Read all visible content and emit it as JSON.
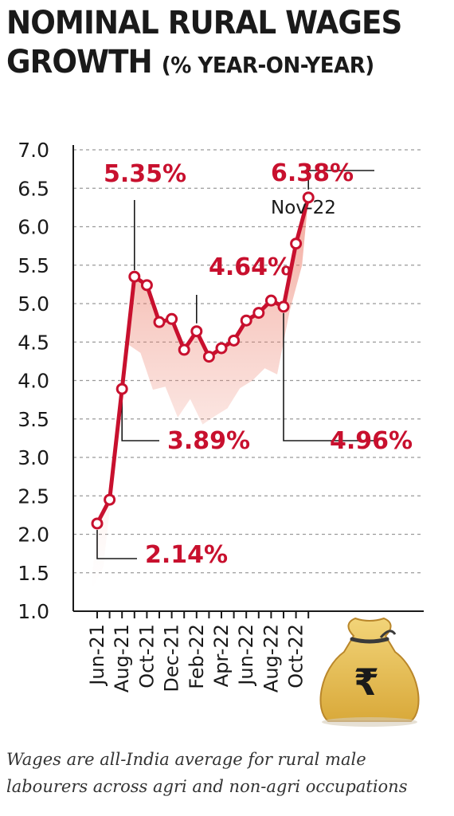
{
  "title": {
    "line1": "NOMINAL  RURAL WAGES",
    "line2": "GROWTH",
    "subtitle": "(% YEAR-ON-YEAR)"
  },
  "chart_data": {
    "type": "line",
    "x": [
      "Jun-21",
      "Jul-21",
      "Aug-21",
      "Sep-21",
      "Oct-21",
      "Nov-21",
      "Dec-21",
      "Jan-22",
      "Feb-22",
      "Mar-22",
      "Apr-22",
      "May-22",
      "Jun-22",
      "Jul-22",
      "Aug-22",
      "Sep-22",
      "Oct-22",
      "Nov-22"
    ],
    "values": [
      2.14,
      2.45,
      3.89,
      5.35,
      5.24,
      4.76,
      4.8,
      4.4,
      4.64,
      4.31,
      4.42,
      4.52,
      4.78,
      4.88,
      5.04,
      4.96,
      5.78,
      6.38
    ],
    "x_tick_labels": [
      "Jun-21",
      "Aug-21",
      "Oct-21",
      "Dec-21",
      "Feb-22",
      "Apr-22",
      "Jun-22",
      "Aug-22",
      "Oct-22"
    ],
    "y_tick_labels": [
      "7.0",
      "6.5",
      "6.0",
      "5.5",
      "5.0",
      "4.5",
      "4.0",
      "3.5",
      "3.0",
      "2.5",
      "2.0",
      "1.5",
      "1.0"
    ],
    "ylim": [
      1.0,
      7.0
    ],
    "grid": "horizontal dashed",
    "line_color": "#c8102e",
    "annotations": [
      {
        "label": "2.14%",
        "x": "Jun-21"
      },
      {
        "label": "3.89%",
        "x": "Aug-21"
      },
      {
        "label": "5.35%",
        "x": "Sep-21"
      },
      {
        "label": "4.64%",
        "x": "Feb-22"
      },
      {
        "label": "4.96%",
        "x": "Sep-22"
      },
      {
        "label": "6.38%",
        "x": "Nov-22",
        "sublabel": "Nov-22"
      }
    ]
  },
  "footnote": {
    "line1": "Wages are all-India average for rural male",
    "line2": "labourers across agri and non-agri occupations"
  },
  "icon": "money-bag-rupee-icon",
  "icon_text": "₹"
}
